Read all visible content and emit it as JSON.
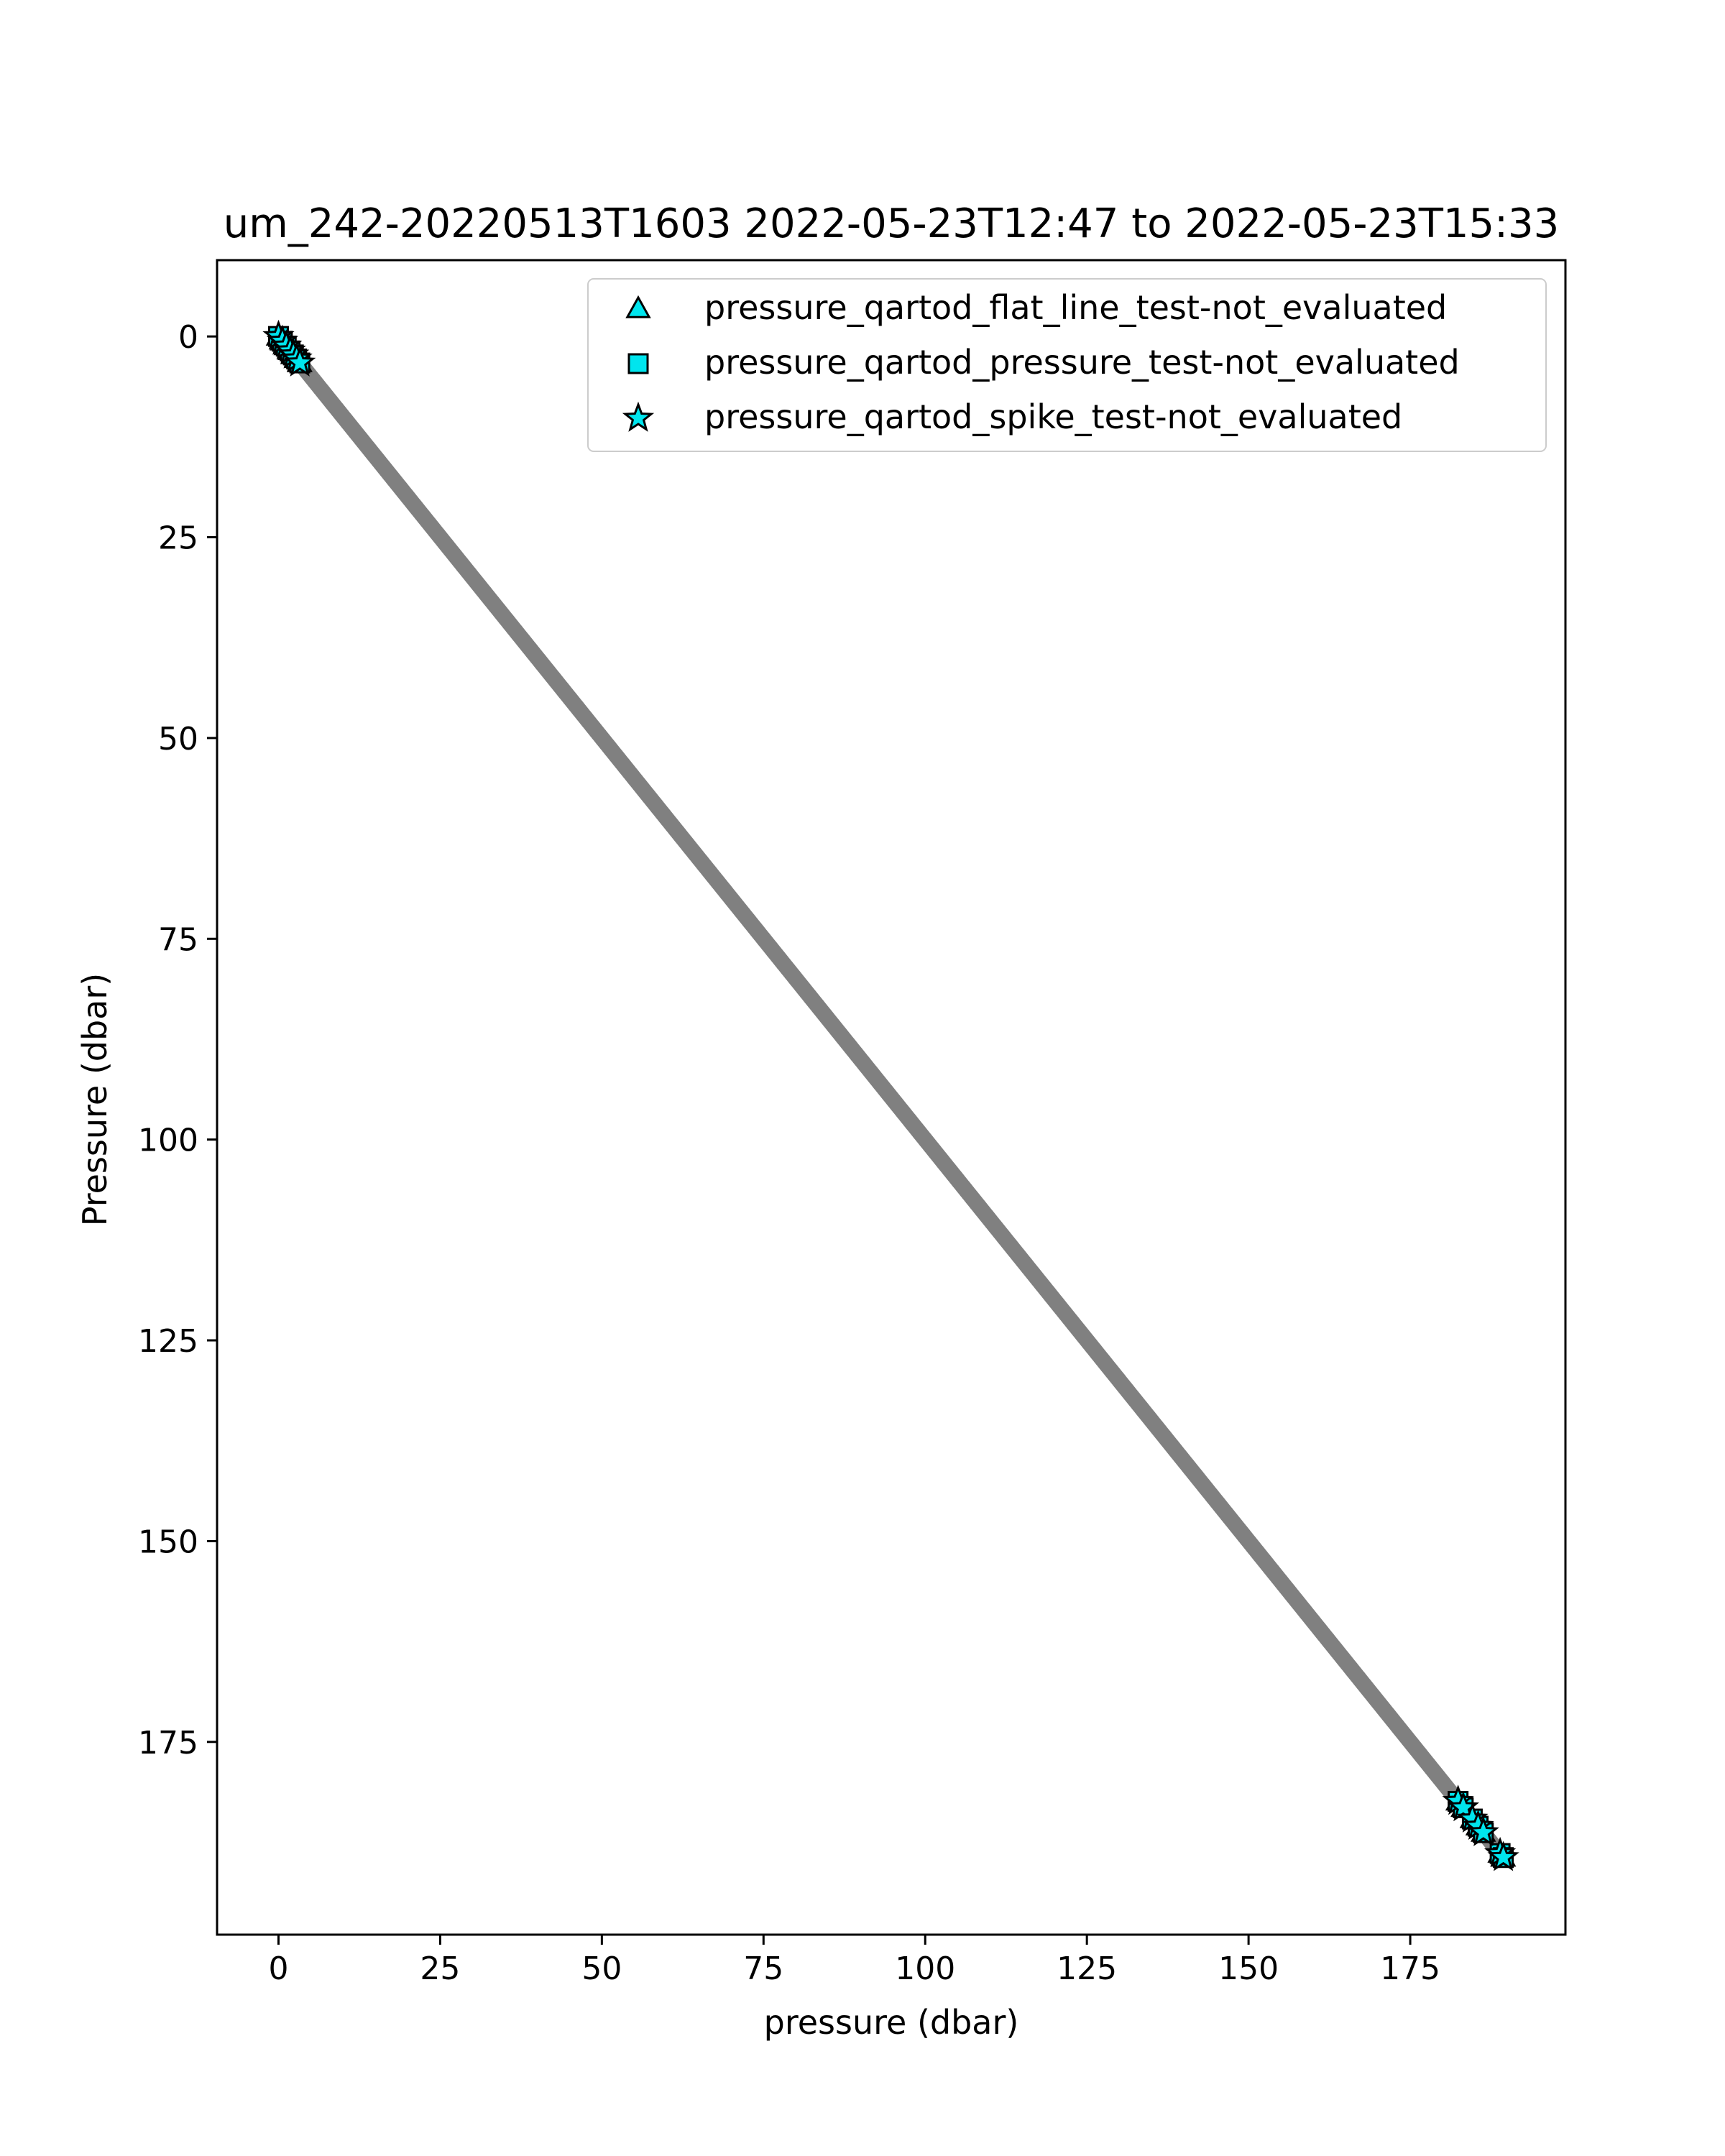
{
  "chart_data": {
    "type": "scatter",
    "title": "um_242-20220513T1603 2022-05-23T12:47 to 2022-05-23T15:33",
    "xlabel": "pressure (dbar)",
    "ylabel": "Pressure (dbar)",
    "xlim": [
      -9.5,
      199
    ],
    "ylim": [
      199,
      -9.5
    ],
    "y_inverted": true,
    "grid": false,
    "x_ticks": [
      0,
      25,
      50,
      75,
      100,
      125,
      150,
      175
    ],
    "y_ticks": [
      0,
      25,
      50,
      75,
      100,
      125,
      150,
      175
    ],
    "legend_placement": "top-right",
    "main_series": {
      "color": "#808080",
      "x_range": [
        0,
        189.5
      ],
      "y_range": [
        0,
        189.5
      ]
    },
    "series": [
      {
        "name": "pressure_qartod_flat_line_test-not_evaluated",
        "marker": "triangle",
        "color": "#00e5ee",
        "edgecolor": "#000000",
        "points": [
          [
            0.0,
            0.0
          ],
          [
            0.6,
            0.6
          ],
          [
            1.2,
            1.2
          ],
          [
            1.8,
            1.8
          ],
          [
            2.3,
            2.3
          ],
          [
            2.8,
            2.8
          ],
          [
            3.3,
            3.3
          ],
          [
            182.4,
            182.4
          ],
          [
            183.2,
            183.2
          ],
          [
            184.6,
            184.6
          ],
          [
            185.5,
            185.5
          ],
          [
            186.3,
            186.3
          ],
          [
            188.9,
            188.9
          ],
          [
            189.4,
            189.4
          ]
        ]
      },
      {
        "name": "pressure_qartod_pressure_test-not_evaluated",
        "marker": "square",
        "color": "#00e5ee",
        "edgecolor": "#000000",
        "points": [
          [
            0.0,
            0.0
          ],
          [
            0.6,
            0.6
          ],
          [
            1.2,
            1.2
          ],
          [
            1.8,
            1.8
          ],
          [
            2.3,
            2.3
          ],
          [
            2.8,
            2.8
          ],
          [
            3.3,
            3.3
          ],
          [
            182.4,
            182.4
          ],
          [
            183.2,
            183.2
          ],
          [
            184.6,
            184.6
          ],
          [
            185.5,
            185.5
          ],
          [
            186.3,
            186.3
          ],
          [
            188.9,
            188.9
          ],
          [
            189.4,
            189.4
          ]
        ]
      },
      {
        "name": "pressure_qartod_spike_test-not_evaluated",
        "marker": "star",
        "color": "#00e5ee",
        "edgecolor": "#000000",
        "points": [
          [
            0.0,
            0.0
          ],
          [
            0.6,
            0.6
          ],
          [
            1.2,
            1.2
          ],
          [
            1.8,
            1.8
          ],
          [
            2.3,
            2.3
          ],
          [
            2.8,
            2.8
          ],
          [
            3.3,
            3.3
          ],
          [
            182.4,
            182.4
          ],
          [
            183.2,
            183.2
          ],
          [
            184.6,
            184.6
          ],
          [
            185.5,
            185.5
          ],
          [
            186.3,
            186.3
          ],
          [
            188.9,
            188.9
          ],
          [
            189.4,
            189.4
          ]
        ]
      }
    ]
  }
}
